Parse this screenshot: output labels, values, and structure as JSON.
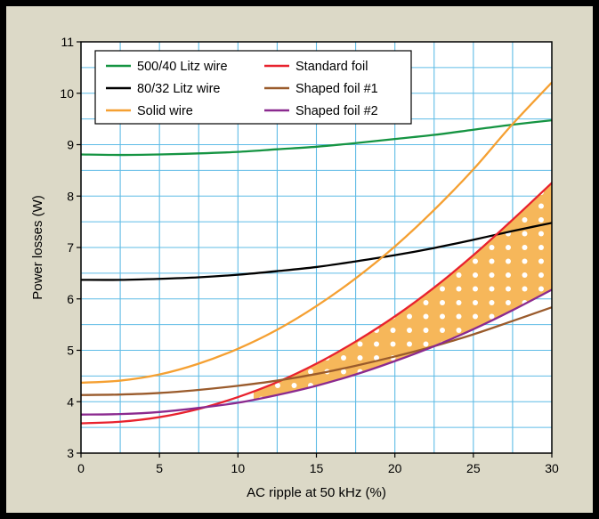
{
  "chart_data": {
    "type": "line",
    "title": "",
    "xlabel": "AC ripple at 50 kHz (%)",
    "ylabel": "Power losses (W)",
    "xlim": [
      0,
      30
    ],
    "ylim": [
      3,
      11
    ],
    "x_ticks": [
      0,
      5,
      10,
      15,
      20,
      25,
      30
    ],
    "y_ticks": [
      3,
      4,
      5,
      6,
      7,
      8,
      9,
      10,
      11
    ],
    "grid": true,
    "legend_position": "top-left",
    "x": [
      0,
      2.5,
      5,
      7.5,
      10,
      12.5,
      15,
      17.5,
      20,
      22.5,
      25,
      27.5,
      30.5
    ],
    "series": [
      {
        "name": "500/40 Litz wire",
        "color": "#159442",
        "values": [
          8.81,
          8.8,
          8.81,
          8.83,
          8.86,
          8.91,
          8.96,
          9.03,
          9.11,
          9.19,
          9.29,
          9.39,
          9.49
        ]
      },
      {
        "name": "80/32 Litz wire",
        "color": "#000000",
        "values": [
          6.37,
          6.37,
          6.39,
          6.42,
          6.47,
          6.54,
          6.62,
          6.73,
          6.85,
          6.99,
          7.15,
          7.32,
          7.51
        ]
      },
      {
        "name": "Solid wire",
        "color": "#f5a032",
        "values": [
          4.37,
          4.41,
          4.53,
          4.74,
          5.03,
          5.4,
          5.86,
          6.4,
          7.02,
          7.73,
          8.52,
          9.4,
          10.37
        ]
      },
      {
        "name": "Standard foil",
        "color": "#e8222e",
        "values": [
          3.58,
          3.61,
          3.7,
          3.86,
          4.09,
          4.38,
          4.74,
          5.17,
          5.66,
          6.22,
          6.85,
          7.54,
          8.4
        ]
      },
      {
        "name": "Shaped foil #1",
        "color": "#9a5b2c",
        "values": [
          4.13,
          4.14,
          4.17,
          4.23,
          4.31,
          4.41,
          4.54,
          4.7,
          4.88,
          5.08,
          5.31,
          5.57,
          5.89
        ]
      },
      {
        "name": "Shaped foil #2",
        "color": "#8b2a8f",
        "values": [
          3.75,
          3.76,
          3.8,
          3.88,
          3.98,
          4.13,
          4.31,
          4.53,
          4.79,
          5.08,
          5.41,
          5.78,
          6.26
        ]
      }
    ],
    "shaded_region": {
      "between": [
        "Standard foil",
        "Shaped foil #2"
      ],
      "from_x": 11,
      "color": "#f6b75a",
      "pattern": "white dots"
    }
  }
}
